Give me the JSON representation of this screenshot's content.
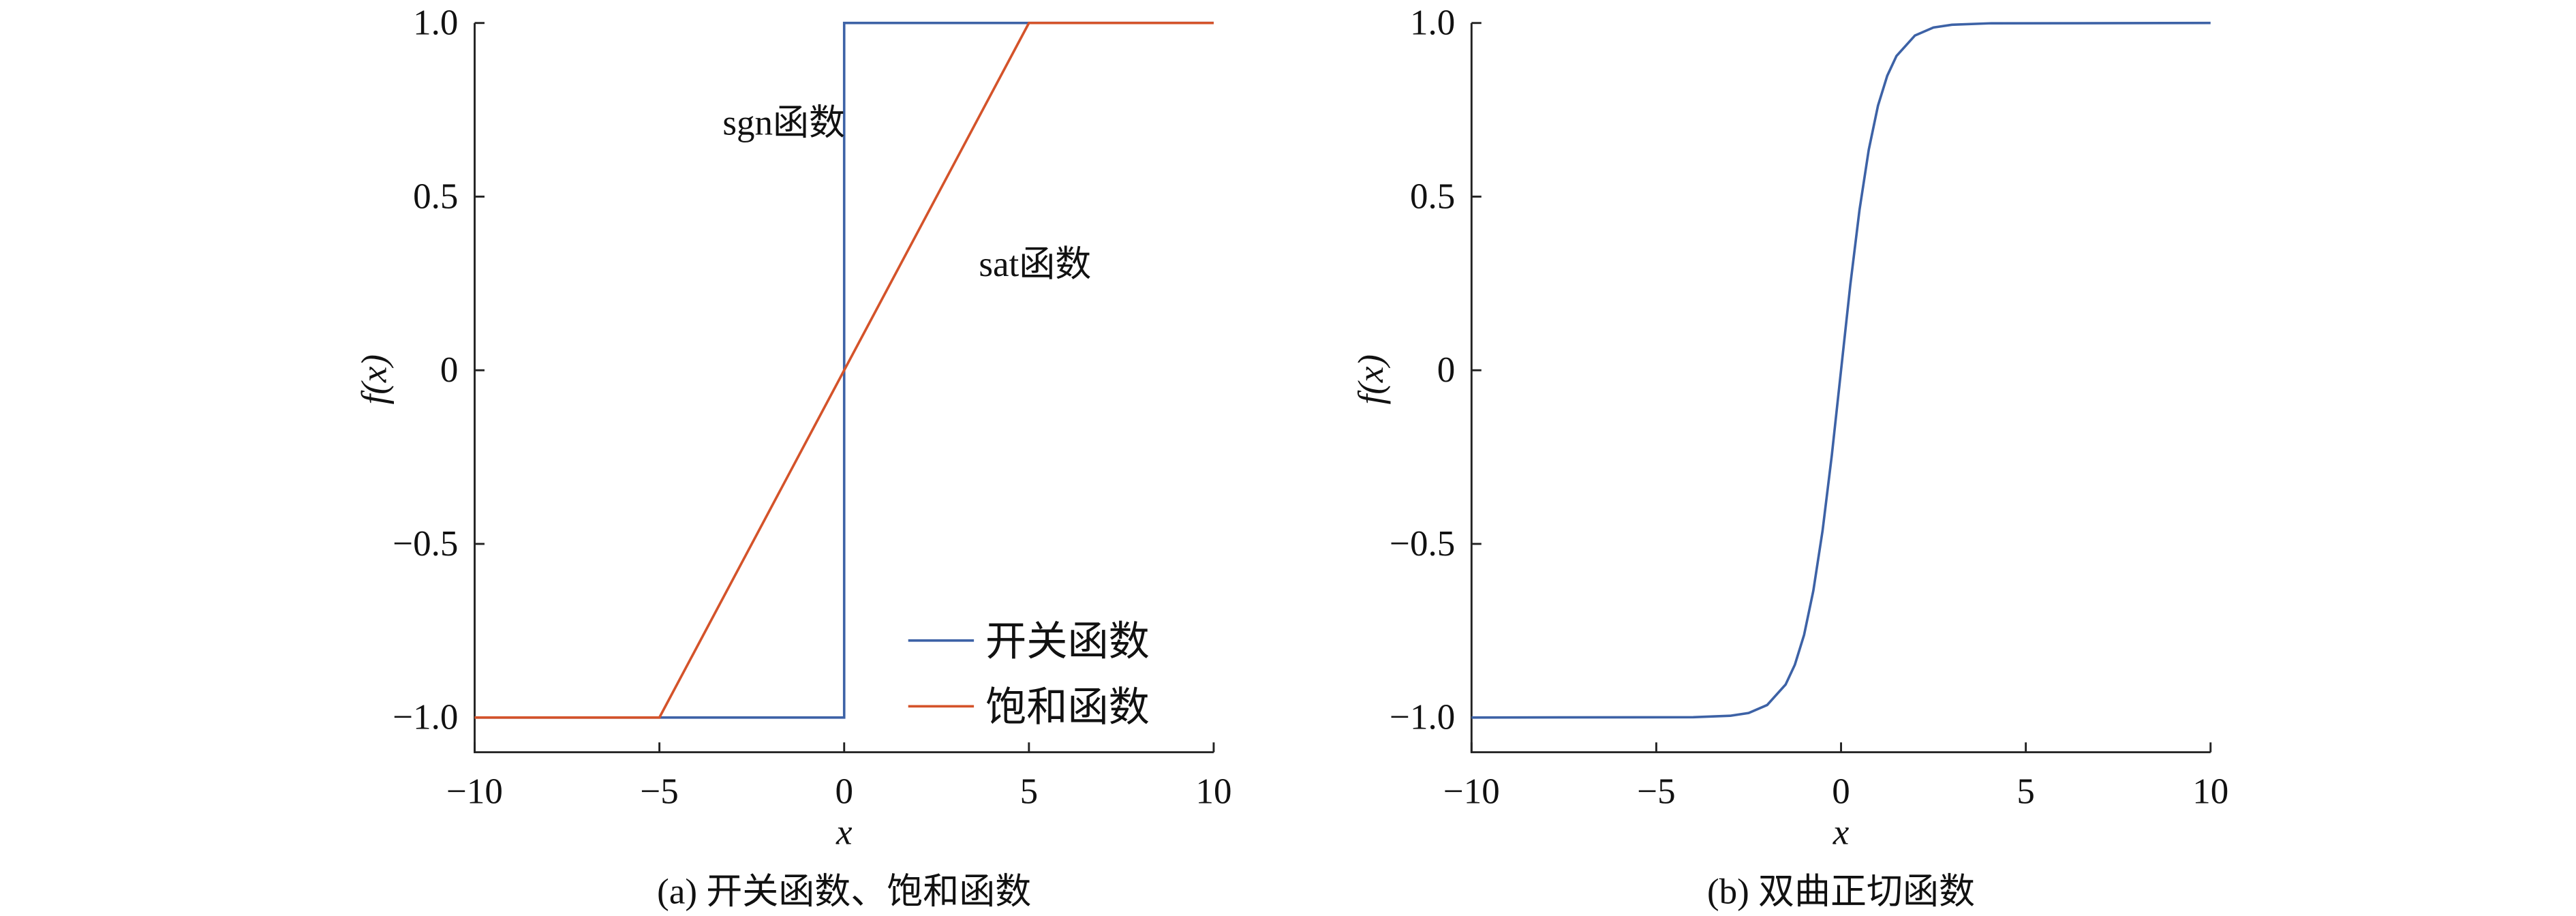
{
  "chart_data": [
    {
      "type": "line",
      "caption": "(a) 开关函数、饱和函数",
      "xlabel": "x",
      "ylabel": "f(x)",
      "xlim": [
        -10,
        10
      ],
      "ylim": [
        -1.1,
        1.0
      ],
      "xticks": [
        {
          "value": -10,
          "label": "−10"
        },
        {
          "value": -5,
          "label": "−5"
        },
        0,
        5,
        10
      ],
      "yticks": [
        {
          "value": -1,
          "label": "−1.0"
        },
        {
          "value": -0.5,
          "label": "−0.5"
        },
        0,
        {
          "value": 0.5,
          "label": "0.5"
        },
        {
          "value": 1,
          "label": "1.0"
        }
      ],
      "legend": "lower right",
      "annotations": [
        "sgn函数",
        "sat函数"
      ],
      "series": [
        {
          "name": "开关函数",
          "color": "#3d62a6",
          "x": [
            -10,
            0,
            0,
            10
          ],
          "values": [
            -1,
            -1,
            1,
            1
          ]
        },
        {
          "name": "饱和函数",
          "color": "#d4532a",
          "x": [
            -10,
            -5,
            5,
            10
          ],
          "values": [
            -1,
            -1,
            1,
            1
          ]
        }
      ]
    },
    {
      "type": "line",
      "caption": "(b) 双曲正切函数",
      "xlabel": "x",
      "ylabel": "f(x)",
      "xlim": [
        -10,
        10
      ],
      "ylim": [
        -1.1,
        1.0
      ],
      "xticks": [
        {
          "value": -10,
          "label": "−10"
        },
        {
          "value": -5,
          "label": "−5"
        },
        0,
        5,
        10
      ],
      "yticks": [
        {
          "value": -1,
          "label": "−1.0"
        },
        {
          "value": -0.5,
          "label": "−0.5"
        },
        0,
        {
          "value": 0.5,
          "label": "0.5"
        },
        {
          "value": 1,
          "label": "1.0"
        }
      ],
      "series": [
        {
          "color": "#3d62a6",
          "x": [
            -10,
            -4,
            -3,
            -2.5,
            -2,
            -1.5,
            -1.25,
            -1,
            -0.75,
            -0.5,
            -0.25,
            0,
            0.25,
            0.5,
            0.75,
            1,
            1.25,
            1.5,
            2,
            2.5,
            3,
            4,
            10
          ],
          "values": [
            -1,
            -0.999,
            -0.995,
            -0.987,
            -0.964,
            -0.905,
            -0.848,
            -0.762,
            -0.635,
            -0.462,
            -0.245,
            0,
            0.245,
            0.462,
            0.635,
            0.762,
            0.848,
            0.905,
            0.964,
            0.987,
            0.995,
            0.999,
            1
          ]
        }
      ]
    }
  ]
}
